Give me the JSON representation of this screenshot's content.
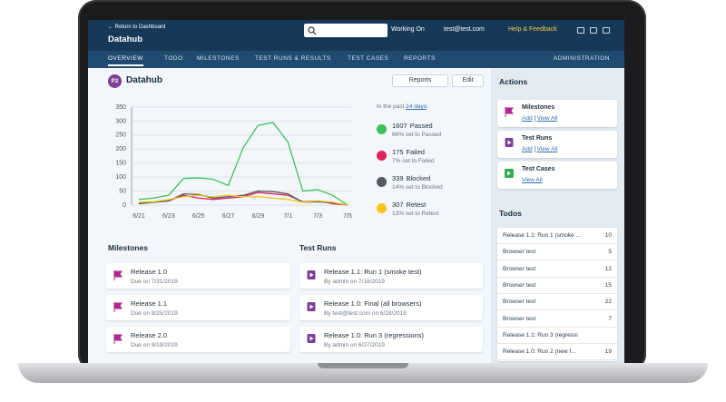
{
  "header": {
    "back_link": "← Return to Dashboard",
    "project": "Datahub",
    "menus": [
      "Working On",
      "test@test.com",
      "Help & Feedback"
    ]
  },
  "nav": {
    "tabs": [
      "OVERVIEW",
      "TODO",
      "MILESTONES",
      "TEST RUNS & RESULTS",
      "TEST CASES",
      "REPORTS"
    ],
    "admin": "ADMINISTRATION"
  },
  "overview": {
    "badge": "P2",
    "title": "Datahub",
    "buttons": [
      "Reports",
      "Edit"
    ]
  },
  "chart_data": {
    "type": "line",
    "categories": [
      "6/21",
      null,
      "6/23",
      null,
      "6/25",
      null,
      "6/27",
      null,
      "6/29",
      null,
      "7/1",
      null,
      "7/3",
      null,
      "7/5"
    ],
    "ylim": [
      0,
      350
    ],
    "yticks": [
      0,
      50,
      100,
      150,
      200,
      250,
      300,
      350
    ],
    "grid": true,
    "period_prefix": "In the past",
    "period_link": "14 days",
    "period_suffix": ":",
    "series": [
      {
        "name": "Passed",
        "color": "#3cc15a",
        "total": 1607,
        "note": "66% set to Passed",
        "values": [
          20,
          25,
          35,
          95,
          97,
          92,
          70,
          205,
          285,
          295,
          225,
          50,
          55,
          35,
          0
        ]
      },
      {
        "name": "Failed",
        "color": "#e0245e",
        "total": 175,
        "note": "7% set to Failed",
        "values": [
          5,
          10,
          15,
          35,
          25,
          20,
          25,
          30,
          45,
          40,
          35,
          12,
          15,
          5,
          0
        ]
      },
      {
        "name": "Blocked",
        "color": "#555a60",
        "total": 339,
        "note": "14% set to Blocked",
        "values": [
          5,
          10,
          15,
          40,
          38,
          25,
          30,
          35,
          50,
          48,
          40,
          10,
          12,
          8,
          0
        ]
      },
      {
        "name": "Retest",
        "color": "#f5c518",
        "total": 307,
        "note": "13% set to Retest",
        "values": [
          10,
          12,
          20,
          30,
          35,
          30,
          35,
          30,
          30,
          25,
          20,
          10,
          15,
          10,
          0
        ]
      }
    ]
  },
  "milestones": {
    "title": "Milestones",
    "items": [
      {
        "name": "Release 1.0",
        "due": "Due on 7/31/2019"
      },
      {
        "name": "Release 1.1",
        "due": "Due on 8/25/2019"
      },
      {
        "name": "Release 2.0",
        "due": "Due on 9/19/2019"
      }
    ]
  },
  "test_runs": {
    "title": "Test Runs",
    "items": [
      {
        "name": "Release 1.1: Run 1 (smoke test)",
        "by": "By admin on 7/18/2019"
      },
      {
        "name": "Release 1.0: Final (all browsers)",
        "by": "By test@test.com on 6/28/2019"
      },
      {
        "name": "Release 1.0: Run 3 (regressions)",
        "by": "By admin on 6/27/2019"
      }
    ]
  },
  "actions": {
    "title": "Actions",
    "items": [
      {
        "name": "Milestones",
        "links": [
          "Add",
          "View All"
        ]
      },
      {
        "name": "Test Runs",
        "links": [
          "Add",
          "View All"
        ]
      },
      {
        "name": "Test Cases",
        "links": [
          "View All"
        ]
      }
    ]
  },
  "todos": {
    "title": "Todos",
    "rows": [
      {
        "name": "Release 1.1: Run 1 (smoke ...",
        "count": 10
      },
      {
        "name": "Browser test",
        "count": 5
      },
      {
        "name": "Browser test",
        "count": 12
      },
      {
        "name": "Browser test",
        "count": 15
      },
      {
        "name": "Browser test",
        "count": 22
      },
      {
        "name": "Browser test",
        "count": 7
      },
      {
        "name": "Release 1.1: Run 3 (regressi",
        "count": null
      },
      {
        "name": "Release 1.0: Run 2 (new f...",
        "count": 19
      }
    ]
  }
}
